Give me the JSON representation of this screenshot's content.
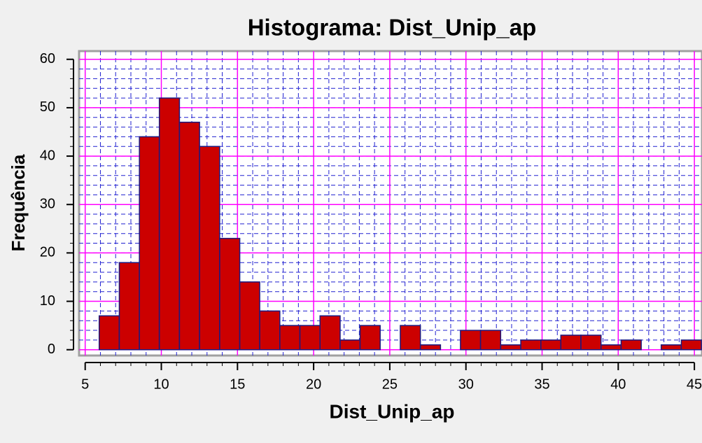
{
  "chart_data": {
    "type": "histogram",
    "title": "Histograma: Dist_Unip_ap",
    "xlabel": "Dist_Unip_ap",
    "ylabel": "Frequência",
    "bins": [
      5.92,
      7.24,
      8.56,
      9.87,
      11.19,
      12.51,
      13.83,
      15.15,
      16.46,
      17.78,
      19.1,
      20.42,
      21.74,
      23.05,
      24.37,
      25.69,
      27.01,
      28.33,
      29.64,
      30.96,
      32.28,
      33.6,
      34.92,
      36.23,
      37.55,
      38.87,
      40.19,
      41.51,
      42.82,
      44.14,
      45.46
    ],
    "values": [
      7,
      18,
      44,
      52,
      47,
      42,
      23,
      14,
      8,
      5,
      5,
      7,
      2,
      5,
      0,
      5,
      1,
      0,
      4,
      4,
      1,
      2,
      2,
      3,
      3,
      1,
      2,
      0,
      1,
      2
    ],
    "color": "#cc0000",
    "edgecolor": "#1a1a80",
    "xlim": [
      4.6,
      45.5
    ],
    "xticks": [
      5,
      10,
      15,
      20,
      25,
      30,
      35,
      40,
      45
    ],
    "ylim": [
      -1.2,
      61.7
    ],
    "yticks": [
      0,
      10,
      20,
      30,
      40,
      50,
      60
    ],
    "grid": true,
    "grid_color": "#ff00ff",
    "minor_grid_color": "#2020d0",
    "xminor": 1,
    "yminor": 2
  }
}
